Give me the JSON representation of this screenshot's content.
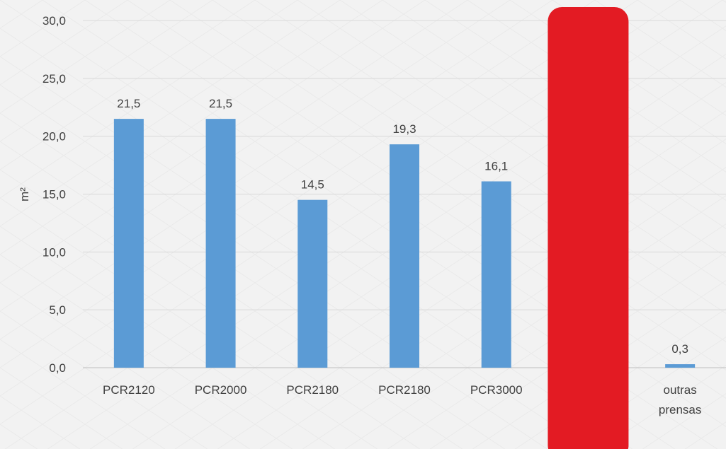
{
  "chart_data": {
    "type": "bar",
    "categories": [
      "PCR2120",
      "PCR2000",
      "PCR2180",
      "PCR2180",
      "PCR3000",
      "",
      "outras prensas"
    ],
    "category_lines": [
      [
        "PCR2120"
      ],
      [
        "PCR2000"
      ],
      [
        "PCR2180"
      ],
      [
        "PCR2180"
      ],
      [
        "PCR3000"
      ],
      [],
      [
        "outras",
        "prensas"
      ]
    ],
    "values": [
      21.5,
      21.5,
      14.5,
      19.3,
      16.1,
      null,
      0.3
    ],
    "data_labels": [
      "21,5",
      "21,5",
      "14,5",
      "19,3",
      "16,1",
      "",
      "0,3"
    ],
    "xlabel": "",
    "ylabel": "m²",
    "ylim": [
      0,
      30
    ],
    "yticks": [
      0,
      5,
      10,
      15,
      20,
      25,
      30
    ],
    "ytick_labels": [
      "0,0",
      "5,0",
      "10,0",
      "15,0",
      "20,0",
      "25,0",
      "30,0"
    ],
    "grid": true,
    "legend": "none",
    "colors": {
      "bar": "#5b9bd5",
      "highlight": "#e31b23",
      "grid": "#d9d9d9",
      "axis": "#bfbfbf",
      "text": "#404040",
      "background": "#f2f2f2"
    },
    "highlight_overlay": {
      "category_index": 5,
      "shape": "rounded-rectangle",
      "label": ""
    }
  }
}
